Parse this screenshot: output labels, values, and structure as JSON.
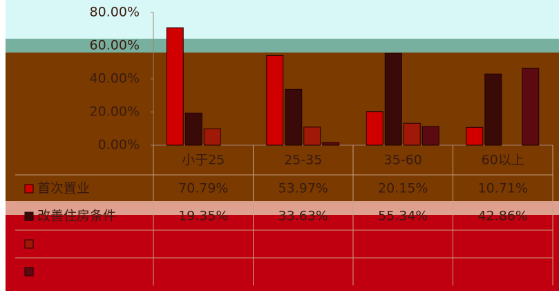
{
  "chart_data": {
    "type": "bar",
    "categories": [
      "小于25",
      "25-35",
      "35-60",
      "60以上"
    ],
    "series": [
      {
        "name": "首次置业",
        "color": "#d00000",
        "values": [
          70.79,
          53.97,
          20.15,
          10.71
        ],
        "value_labels": [
          "70.79%",
          "53.97%",
          "20.15%",
          "10.71%"
        ]
      },
      {
        "name": "改善住房条件",
        "color": "#3a0a08",
        "values": [
          19.35,
          33.63,
          55.34,
          42.86
        ],
        "value_labels": [
          "19.35%",
          "33.63%",
          "55.34%",
          "42.86%"
        ]
      },
      {
        "name": null,
        "color": "#a01808",
        "values": [
          9.86,
          10.9,
          13.2,
          0
        ]
      },
      {
        "name": null,
        "color": "#5a0a10",
        "values": [
          0,
          1.5,
          11.3,
          46.43
        ]
      }
    ],
    "ylim": [
      0,
      80
    ],
    "yticks": [
      {
        "value": 0,
        "label": "0.00%"
      },
      {
        "value": 20,
        "label": "20.00%"
      },
      {
        "value": 40,
        "label": "40.00%"
      },
      {
        "value": 60,
        "label": "60.00%"
      },
      {
        "value": 80,
        "label": "80.00%"
      }
    ],
    "grid": false
  }
}
